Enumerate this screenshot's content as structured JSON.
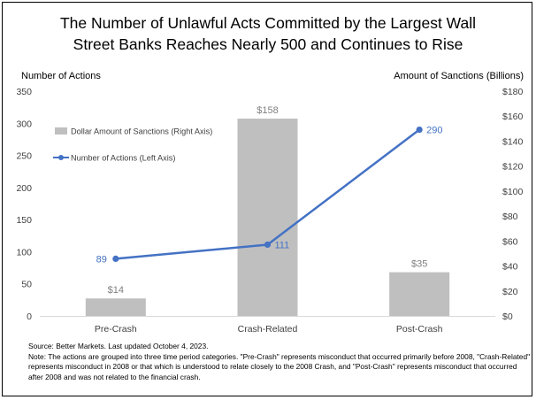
{
  "chart_data": {
    "type": "bar",
    "title_lines": [
      "The Number of Unlawful Acts Committed by the Largest Wall",
      "Street Banks Reaches Nearly 500 and Continues to Rise"
    ],
    "categories": [
      "Pre-Crash",
      "Crash-Related",
      "Post-Crash"
    ],
    "ylabel_left": "Number of Actions",
    "ylabel_right": "Amount of Sanctions (Billions)",
    "ylim_left": [
      0,
      350
    ],
    "ylim_right": [
      0,
      180
    ],
    "yticks_left": [
      "0",
      "50",
      "100",
      "150",
      "200",
      "250",
      "300",
      "350"
    ],
    "yticks_right": [
      "$0",
      "$20",
      "$40",
      "$60",
      "$80",
      "$100",
      "$120",
      "$140",
      "$160",
      "$180"
    ],
    "series": [
      {
        "name": "Dollar Amount of Sanctions (Right Axis)",
        "type": "bar",
        "axis": "right",
        "values": [
          14,
          158,
          35
        ],
        "labels": [
          "$14",
          "$158",
          "$35"
        ],
        "color": "#bfbfbf",
        "label_color": "#7f7f7f"
      },
      {
        "name": "Number of Actions (Left Axis)",
        "type": "line",
        "axis": "left",
        "values": [
          89,
          111,
          290
        ],
        "labels": [
          "89",
          "111",
          "290"
        ],
        "color": "#4472c4",
        "label_color": "#4472c4"
      }
    ],
    "legend_position": "top-left",
    "grid": false
  },
  "notes": {
    "source": "Source: Better Markets. Last updated October 4, 2023.",
    "note": "Note: The actions are grouped into three time period categories. \"Pre-Crash\" represents misconduct that occurred primarily before 2008, \"Crash-Related\" represents misconduct in 2008 or that which is understood to relate closely to the 2008 Crash, and \"Post-Crash\" represents misconduct that occurred after 2008 and was not related to the financial crash."
  }
}
